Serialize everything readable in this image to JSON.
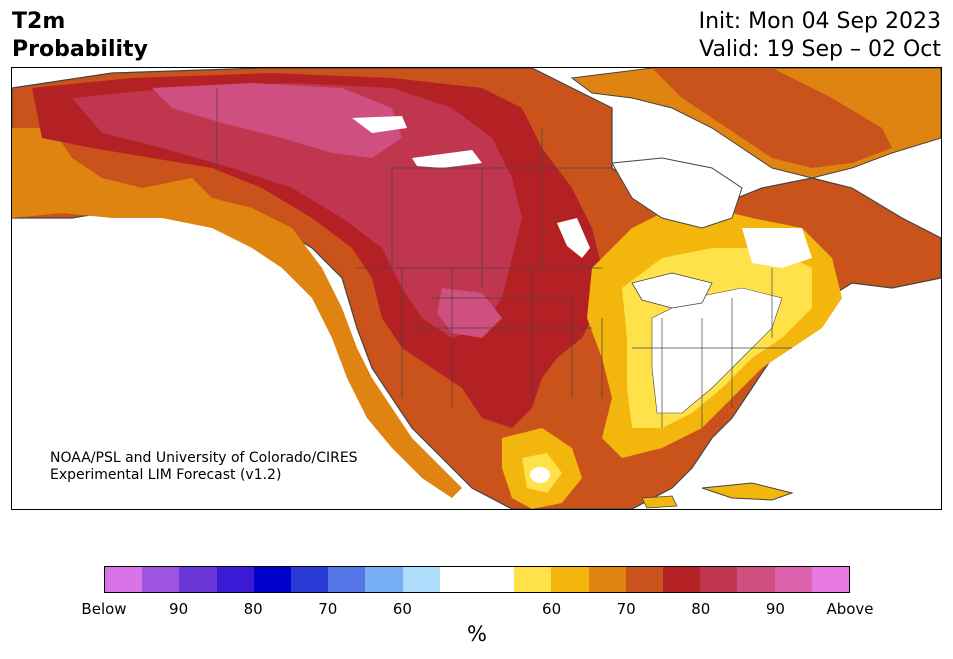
{
  "title": {
    "line1": "T2m",
    "line2": "Probability"
  },
  "dates": {
    "init": "Init: Mon 04 Sep 2023",
    "valid": "Valid: 19 Sep – 02 Oct"
  },
  "credit": {
    "line1": "NOAA/PSL and University of Colorado/CIRES",
    "line2": "Experimental LIM Forecast (v1.2)"
  },
  "colorbar": {
    "colors": [
      "#d874e8",
      "#9e55e1",
      "#6d36d8",
      "#3a1ad5",
      "#0000cc",
      "#2a3ad7",
      "#5476e6",
      "#77aef4",
      "#aedcfb",
      "#ffffff",
      "#ffffff",
      "#ffe14a",
      "#f3b60d",
      "#df8410",
      "#c9531b",
      "#b42124",
      "#c1364f",
      "#cf4f81",
      "#dc62ae",
      "#e779e3"
    ],
    "tick_labels": [
      "Below",
      "90",
      "80",
      "70",
      "60",
      "60",
      "70",
      "80",
      "90",
      "Above"
    ],
    "unit": "%"
  },
  "legend_colors": {
    "white": "#ffffff",
    "light_yellow": "#ffe14a",
    "yellow": "#f3b60d",
    "orange": "#df8410",
    "dark_orange": "#c9531b",
    "red": "#b42124",
    "crimson": "#c1364f",
    "rose": "#cf4f81",
    "land_outline": "#444444"
  }
}
